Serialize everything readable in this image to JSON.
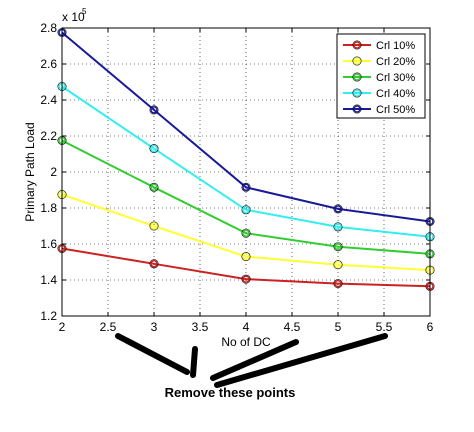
{
  "chart_data": {
    "type": "line",
    "title": "",
    "xlabel": "No of DC",
    "ylabel": "Primary Path Load",
    "y_exponent_label": "x 10",
    "y_exponent_power": "5",
    "xlim": [
      2,
      6
    ],
    "ylim": [
      1.2,
      2.8
    ],
    "x_ticks": [
      "2",
      "2.5",
      "3",
      "3.5",
      "4",
      "4.5",
      "5",
      "5.5",
      "6"
    ],
    "y_ticks": [
      "1.2",
      "1.4",
      "1.6",
      "1.8",
      "2",
      "2.2",
      "2.4",
      "2.6",
      "2.8"
    ],
    "grid": true,
    "grid_style": "dotted",
    "legend_position": "top-right",
    "x": [
      2,
      3,
      4,
      5,
      6
    ],
    "series": [
      {
        "name": "Crl 10%",
        "color": "#cc2222",
        "values": [
          1.575,
          1.49,
          1.405,
          1.38,
          1.365
        ]
      },
      {
        "name": "Crl 20%",
        "color": "#ffff33",
        "values": [
          1.875,
          1.7,
          1.53,
          1.485,
          1.455
        ]
      },
      {
        "name": "Crl 30%",
        "color": "#33cc33",
        "values": [
          2.175,
          1.915,
          1.66,
          1.585,
          1.545
        ]
      },
      {
        "name": "Crl 40%",
        "color": "#33eeee",
        "values": [
          2.475,
          2.13,
          1.79,
          1.695,
          1.64
        ]
      },
      {
        "name": "Crl 50%",
        "color": "#1a1a99",
        "values": [
          2.775,
          2.345,
          1.915,
          1.795,
          1.725
        ]
      }
    ],
    "annotation": "Remove these points"
  }
}
